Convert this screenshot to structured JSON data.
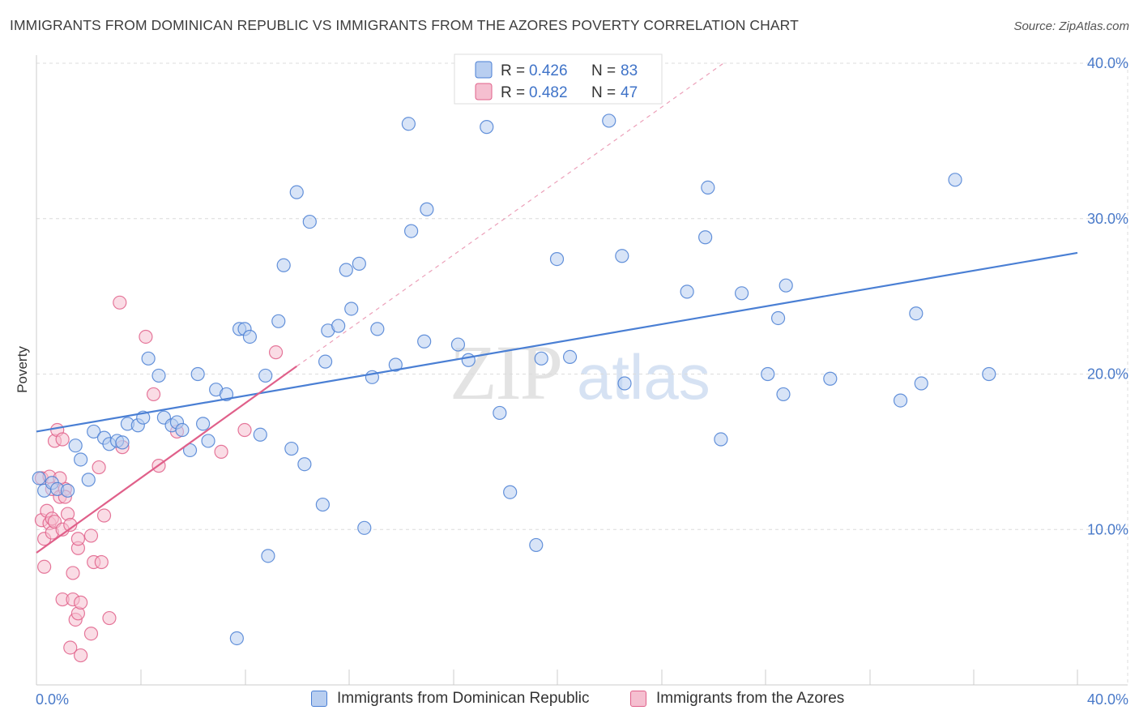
{
  "title": "IMMIGRANTS FROM DOMINICAN REPUBLIC VS IMMIGRANTS FROM THE AZORES POVERTY CORRELATION CHART",
  "source": "Source: ZipAtlas.com",
  "watermark": {
    "zip": "ZIP",
    "atlas": "atlas"
  },
  "colors": {
    "blue": "#4a7fd4",
    "blue_fill": "#b8cef0",
    "pink": "#e0608a",
    "pink_fill": "#f5bfd0",
    "tick": "#4a7ac9",
    "grid": "#dcdcdc"
  },
  "legend": {
    "rows": [
      {
        "r_label": "R = ",
        "r_value": "0.426",
        "n_label": "N = ",
        "n_value": "83"
      },
      {
        "r_label": "R = ",
        "r_value": "0.482",
        "n_label": "N = ",
        "n_value": "47"
      }
    ]
  },
  "chart_data": {
    "type": "scatter",
    "title": "IMMIGRANTS FROM DOMINICAN REPUBLIC VS IMMIGRANTS FROM THE AZORES POVERTY CORRELATION CHART",
    "xlabel": "",
    "ylabel": "Poverty",
    "xlim": [
      0,
      40
    ],
    "ylim": [
      0,
      40
    ],
    "x_tick_labels": [
      "0.0%",
      "40.0%"
    ],
    "y_ticks": [
      10,
      20,
      30,
      40
    ],
    "y_tick_labels": [
      "10.0%",
      "20.0%",
      "30.0%",
      "40.0%"
    ],
    "grid": true,
    "legend_position": "top-center",
    "series": [
      {
        "name": "Immigrants from Dominican Republic",
        "color": "blue",
        "R": 0.426,
        "N": 83,
        "trend": {
          "x": [
            0,
            40
          ],
          "y": [
            16.3,
            27.8
          ]
        },
        "points": [
          [
            0.1,
            13.3
          ],
          [
            0.3,
            12.5
          ],
          [
            0.6,
            13.0
          ],
          [
            0.8,
            12.6
          ],
          [
            1.2,
            12.5
          ],
          [
            1.5,
            15.4
          ],
          [
            1.7,
            14.5
          ],
          [
            2.0,
            13.2
          ],
          [
            2.2,
            16.3
          ],
          [
            2.6,
            15.9
          ],
          [
            2.8,
            15.5
          ],
          [
            3.1,
            15.7
          ],
          [
            3.3,
            15.6
          ],
          [
            3.5,
            16.8
          ],
          [
            3.9,
            16.7
          ],
          [
            4.1,
            17.2
          ],
          [
            4.3,
            21.0
          ],
          [
            4.7,
            19.9
          ],
          [
            4.9,
            17.2
          ],
          [
            5.2,
            16.7
          ],
          [
            5.4,
            16.9
          ],
          [
            5.6,
            16.4
          ],
          [
            5.9,
            15.1
          ],
          [
            6.2,
            20.0
          ],
          [
            6.4,
            16.8
          ],
          [
            6.6,
            15.7
          ],
          [
            6.9,
            19.0
          ],
          [
            7.3,
            18.7
          ],
          [
            7.7,
            3.0
          ],
          [
            7.8,
            22.9
          ],
          [
            8.0,
            22.9
          ],
          [
            8.2,
            22.4
          ],
          [
            8.6,
            16.1
          ],
          [
            8.8,
            19.9
          ],
          [
            8.9,
            8.3
          ],
          [
            9.3,
            23.4
          ],
          [
            9.5,
            27.0
          ],
          [
            9.8,
            15.2
          ],
          [
            10.0,
            31.7
          ],
          [
            10.3,
            14.2
          ],
          [
            10.5,
            29.8
          ],
          [
            11.0,
            11.6
          ],
          [
            11.1,
            20.8
          ],
          [
            11.2,
            22.8
          ],
          [
            11.6,
            23.1
          ],
          [
            11.9,
            26.7
          ],
          [
            12.1,
            24.2
          ],
          [
            12.4,
            27.1
          ],
          [
            12.6,
            10.1
          ],
          [
            12.9,
            19.8
          ],
          [
            13.1,
            22.9
          ],
          [
            13.8,
            20.6
          ],
          [
            14.3,
            36.1
          ],
          [
            14.4,
            29.2
          ],
          [
            14.9,
            22.1
          ],
          [
            15.0,
            30.6
          ],
          [
            16.2,
            21.9
          ],
          [
            16.6,
            20.9
          ],
          [
            17.3,
            35.9
          ],
          [
            17.8,
            17.5
          ],
          [
            18.2,
            12.4
          ],
          [
            19.2,
            9.0
          ],
          [
            19.4,
            21.0
          ],
          [
            20.0,
            27.4
          ],
          [
            20.5,
            21.1
          ],
          [
            22.0,
            36.3
          ],
          [
            22.5,
            27.6
          ],
          [
            22.6,
            19.4
          ],
          [
            25.0,
            25.3
          ],
          [
            25.7,
            28.8
          ],
          [
            25.8,
            32.0
          ],
          [
            26.3,
            15.8
          ],
          [
            27.1,
            25.2
          ],
          [
            28.1,
            20.0
          ],
          [
            28.5,
            23.6
          ],
          [
            28.7,
            18.7
          ],
          [
            28.8,
            25.7
          ],
          [
            30.5,
            19.7
          ],
          [
            33.2,
            18.3
          ],
          [
            33.8,
            23.9
          ],
          [
            34.0,
            19.4
          ],
          [
            35.3,
            32.5
          ],
          [
            36.6,
            20.0
          ]
        ]
      },
      {
        "name": "Immigrants from the Azores",
        "color": "pink",
        "R": 0.482,
        "N": 47,
        "trend": {
          "x": [
            0,
            10
          ],
          "y": [
            8.5,
            20.5
          ]
        },
        "trend_extended": {
          "x": [
            10,
            26.4
          ],
          "y": [
            20.5,
            40.0
          ]
        },
        "points": [
          [
            0.2,
            13.3
          ],
          [
            0.2,
            10.6
          ],
          [
            0.3,
            9.4
          ],
          [
            0.3,
            7.6
          ],
          [
            0.4,
            11.2
          ],
          [
            0.5,
            13.4
          ],
          [
            0.5,
            10.4
          ],
          [
            0.6,
            10.7
          ],
          [
            0.6,
            9.8
          ],
          [
            0.6,
            12.6
          ],
          [
            0.7,
            15.7
          ],
          [
            0.7,
            10.5
          ],
          [
            0.8,
            16.4
          ],
          [
            0.9,
            12.1
          ],
          [
            1.0,
            15.8
          ],
          [
            1.0,
            5.5
          ],
          [
            1.0,
            10.0
          ],
          [
            1.1,
            12.6
          ],
          [
            1.1,
            12.1
          ],
          [
            1.2,
            11.0
          ],
          [
            1.3,
            10.3
          ],
          [
            1.3,
            2.4
          ],
          [
            1.4,
            7.2
          ],
          [
            1.4,
            5.5
          ],
          [
            1.5,
            4.2
          ],
          [
            1.6,
            8.8
          ],
          [
            1.6,
            4.6
          ],
          [
            1.6,
            9.4
          ],
          [
            1.7,
            5.3
          ],
          [
            1.7,
            1.9
          ],
          [
            2.1,
            3.3
          ],
          [
            2.1,
            9.6
          ],
          [
            2.2,
            7.9
          ],
          [
            2.4,
            14.0
          ],
          [
            2.5,
            7.9
          ],
          [
            2.6,
            10.9
          ],
          [
            2.8,
            4.3
          ],
          [
            3.3,
            15.3
          ],
          [
            3.2,
            24.6
          ],
          [
            4.2,
            22.4
          ],
          [
            4.5,
            18.7
          ],
          [
            4.7,
            14.1
          ],
          [
            5.4,
            16.3
          ],
          [
            7.1,
            15.0
          ],
          [
            8.0,
            16.4
          ],
          [
            9.2,
            21.4
          ],
          [
            0.9,
            13.3
          ]
        ]
      }
    ]
  }
}
